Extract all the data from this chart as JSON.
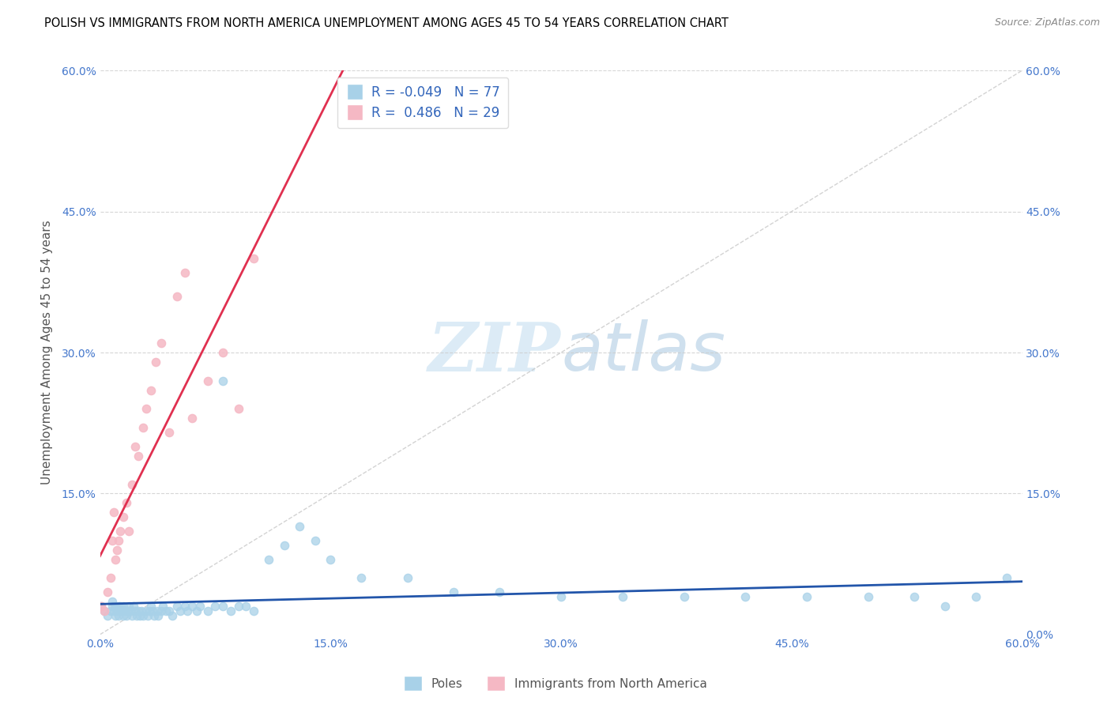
{
  "title": "POLISH VS IMMIGRANTS FROM NORTH AMERICA UNEMPLOYMENT AMONG AGES 45 TO 54 YEARS CORRELATION CHART",
  "source": "Source: ZipAtlas.com",
  "ylabel": "Unemployment Among Ages 45 to 54 years",
  "xlim": [
    0.0,
    0.6
  ],
  "ylim": [
    0.0,
    0.6
  ],
  "xticks": [
    0.0,
    0.15,
    0.3,
    0.45,
    0.6
  ],
  "yticks": [
    0.15,
    0.3,
    0.45,
    0.6
  ],
  "xticklabels": [
    "0.0%",
    "15.0%",
    "30.0%",
    "45.0%",
    "60.0%"
  ],
  "left_yticklabels": [
    "15.0%",
    "30.0%",
    "45.0%",
    "60.0%"
  ],
  "right_yticklabels": [
    "0.0%",
    "15.0%",
    "30.0%",
    "45.0%",
    "60.0%"
  ],
  "right_yticks": [
    0.0,
    0.15,
    0.3,
    0.45,
    0.6
  ],
  "poles_R": -0.049,
  "poles_N": 77,
  "immigrants_R": 0.486,
  "immigrants_N": 29,
  "poles_color": "#a8d1e8",
  "immigrants_color": "#f5b8c4",
  "poles_line_color": "#2255aa",
  "immigrants_line_color": "#e03050",
  "diagonal_color": "#c8c8c8",
  "legend_label_poles": "Poles",
  "legend_label_immigrants": "Immigrants from North America",
  "watermark_zip": "ZIP",
  "watermark_atlas": "atlas",
  "poles_x": [
    0.001,
    0.003,
    0.005,
    0.007,
    0.008,
    0.008,
    0.009,
    0.01,
    0.01,
    0.011,
    0.012,
    0.012,
    0.013,
    0.013,
    0.014,
    0.015,
    0.015,
    0.016,
    0.017,
    0.018,
    0.019,
    0.02,
    0.021,
    0.022,
    0.023,
    0.024,
    0.025,
    0.026,
    0.027,
    0.028,
    0.03,
    0.031,
    0.032,
    0.033,
    0.034,
    0.035,
    0.037,
    0.038,
    0.04,
    0.041,
    0.043,
    0.045,
    0.047,
    0.05,
    0.052,
    0.055,
    0.057,
    0.06,
    0.063,
    0.065,
    0.07,
    0.075,
    0.08,
    0.085,
    0.09,
    0.095,
    0.1,
    0.11,
    0.12,
    0.13,
    0.14,
    0.15,
    0.17,
    0.2,
    0.23,
    0.26,
    0.3,
    0.34,
    0.38,
    0.42,
    0.46,
    0.5,
    0.53,
    0.55,
    0.57,
    0.59,
    0.08
  ],
  "poles_y": [
    0.03,
    0.025,
    0.02,
    0.025,
    0.03,
    0.035,
    0.025,
    0.02,
    0.03,
    0.025,
    0.02,
    0.03,
    0.025,
    0.03,
    0.025,
    0.02,
    0.03,
    0.025,
    0.02,
    0.025,
    0.03,
    0.025,
    0.02,
    0.03,
    0.025,
    0.02,
    0.025,
    0.02,
    0.025,
    0.02,
    0.025,
    0.02,
    0.025,
    0.03,
    0.025,
    0.02,
    0.025,
    0.02,
    0.025,
    0.03,
    0.025,
    0.025,
    0.02,
    0.03,
    0.025,
    0.03,
    0.025,
    0.03,
    0.025,
    0.03,
    0.025,
    0.03,
    0.03,
    0.025,
    0.03,
    0.03,
    0.025,
    0.08,
    0.095,
    0.115,
    0.1,
    0.08,
    0.06,
    0.06,
    0.045,
    0.045,
    0.04,
    0.04,
    0.04,
    0.04,
    0.04,
    0.04,
    0.04,
    0.03,
    0.04,
    0.06,
    0.27
  ],
  "immigrants_x": [
    0.001,
    0.003,
    0.005,
    0.007,
    0.008,
    0.009,
    0.01,
    0.011,
    0.012,
    0.013,
    0.015,
    0.017,
    0.019,
    0.021,
    0.023,
    0.025,
    0.028,
    0.03,
    0.033,
    0.036,
    0.04,
    0.045,
    0.05,
    0.055,
    0.06,
    0.07,
    0.08,
    0.09,
    0.1
  ],
  "immigrants_y": [
    0.03,
    0.025,
    0.045,
    0.06,
    0.1,
    0.13,
    0.08,
    0.09,
    0.1,
    0.11,
    0.125,
    0.14,
    0.11,
    0.16,
    0.2,
    0.19,
    0.22,
    0.24,
    0.26,
    0.29,
    0.31,
    0.215,
    0.36,
    0.385,
    0.23,
    0.27,
    0.3,
    0.24,
    0.4
  ]
}
